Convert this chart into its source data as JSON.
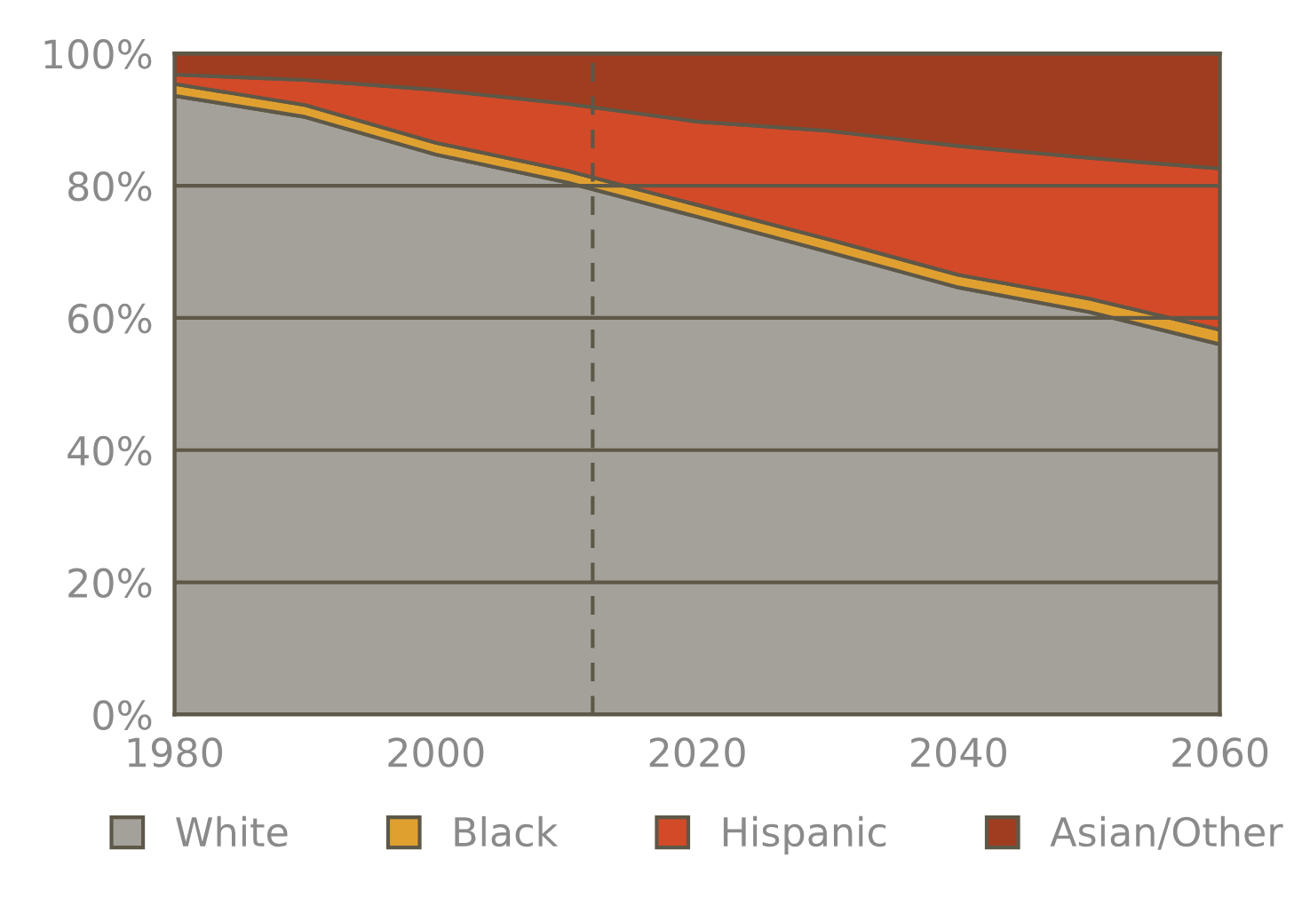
{
  "chart_data": {
    "type": "area",
    "stacked": true,
    "x": [
      1980,
      1990,
      2000,
      2010,
      2020,
      2030,
      2040,
      2050,
      2060
    ],
    "series": [
      {
        "name": "White",
        "color": "#a4a19b",
        "values": [
          93.6,
          90.4,
          84.7,
          80.5,
          75.3,
          70.0,
          64.6,
          60.9,
          56.0
        ]
      },
      {
        "name": "Black",
        "color": "#e0a030",
        "values": [
          1.8,
          1.8,
          1.8,
          1.8,
          1.8,
          1.9,
          1.9,
          2.0,
          2.2
        ]
      },
      {
        "name": "Hispanic",
        "color": "#d24a28",
        "values": [
          1.4,
          3.8,
          8.0,
          10.1,
          12.6,
          16.4,
          19.5,
          21.3,
          24.4
        ]
      },
      {
        "name": "Asian/Other",
        "color": "#a03d20",
        "values": [
          3.2,
          4.0,
          5.5,
          7.6,
          10.3,
          11.7,
          14.0,
          15.8,
          17.4
        ]
      }
    ],
    "xlim": [
      1980,
      2060
    ],
    "xticks": [
      1980,
      2000,
      2020,
      2040,
      2060
    ],
    "ylim": [
      0,
      100
    ],
    "yticks": [
      {
        "value": 0,
        "label": "0%"
      },
      {
        "value": 20,
        "label": "20%"
      },
      {
        "value": 40,
        "label": "40%"
      },
      {
        "value": 60,
        "label": "60%"
      },
      {
        "value": 80,
        "label": "80%"
      },
      {
        "value": 100,
        "label": "100%"
      }
    ],
    "ref_lines": [
      {
        "axis": "x",
        "value": 2012,
        "label": null,
        "line_style": "dashed"
      }
    ],
    "grid": "y",
    "legend": "bottom"
  }
}
